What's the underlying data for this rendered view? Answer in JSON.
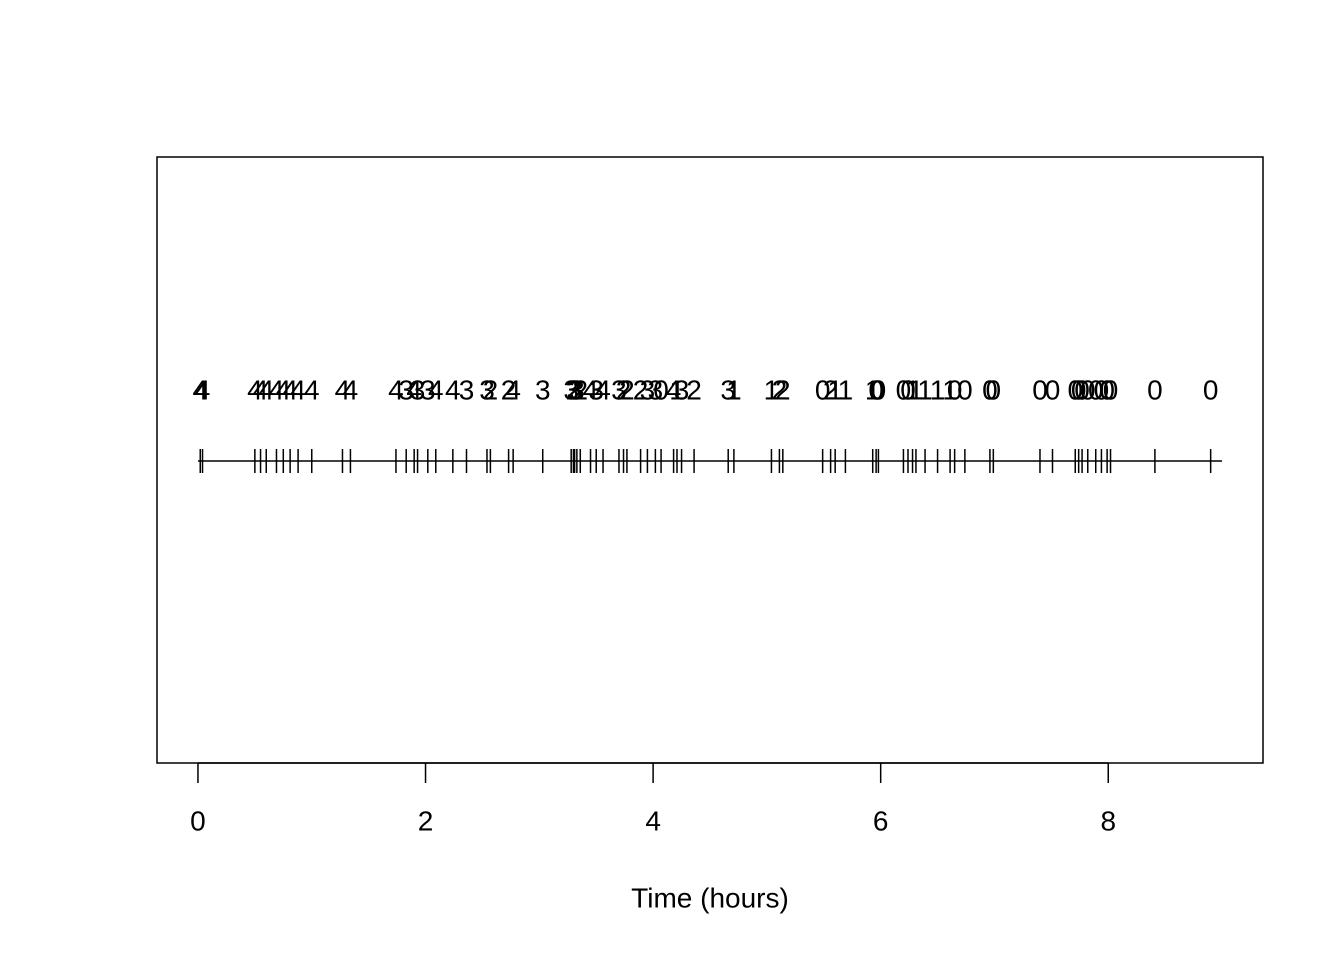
{
  "chart_data": {
    "type": "event",
    "xlabel": "Time (hours)",
    "xlim": [
      -0.36,
      9.36
    ],
    "xticks": [
      0,
      2,
      4,
      6,
      8
    ],
    "baseline": [
      0,
      9
    ],
    "color": "#000000",
    "x": [
      0.02,
      0.04,
      0.5,
      0.55,
      0.6,
      0.69,
      0.75,
      0.81,
      0.88,
      1.0,
      1.27,
      1.34,
      1.74,
      1.83,
      1.9,
      1.93,
      2.02,
      2.09,
      2.24,
      2.36,
      2.54,
      2.57,
      2.73,
      2.77,
      3.03,
      3.28,
      3.3,
      3.31,
      3.33,
      3.36,
      3.45,
      3.5,
      3.56,
      3.7,
      3.74,
      3.77,
      3.89,
      3.95,
      4.02,
      4.07,
      4.18,
      4.21,
      4.25,
      4.36,
      4.66,
      4.71,
      5.04,
      5.11,
      5.14,
      5.49,
      5.56,
      5.6,
      5.69,
      5.93,
      5.96,
      5.98,
      6.2,
      6.24,
      6.28,
      6.31,
      6.39,
      6.5,
      6.61,
      6.65,
      6.74,
      6.96,
      6.99,
      7.4,
      7.51,
      7.71,
      7.74,
      7.77,
      7.82,
      7.89,
      7.94,
      7.99,
      8.02,
      8.41,
      8.9
    ],
    "states": [
      4,
      4,
      4,
      4,
      4,
      4,
      4,
      4,
      4,
      4,
      4,
      4,
      4,
      3,
      4,
      3,
      3,
      4,
      4,
      3,
      3,
      2,
      2,
      4,
      3,
      3,
      2,
      3,
      3,
      2,
      4,
      3,
      4,
      3,
      2,
      2,
      2,
      3,
      3,
      0,
      4,
      1,
      3,
      2,
      3,
      1,
      1,
      2,
      2,
      0,
      2,
      1,
      1,
      1,
      0,
      0,
      0,
      0,
      1,
      1,
      1,
      1,
      1,
      0,
      0,
      0,
      0,
      0,
      0,
      0,
      0,
      0,
      0,
      0,
      0,
      0,
      0,
      0,
      0
    ]
  }
}
